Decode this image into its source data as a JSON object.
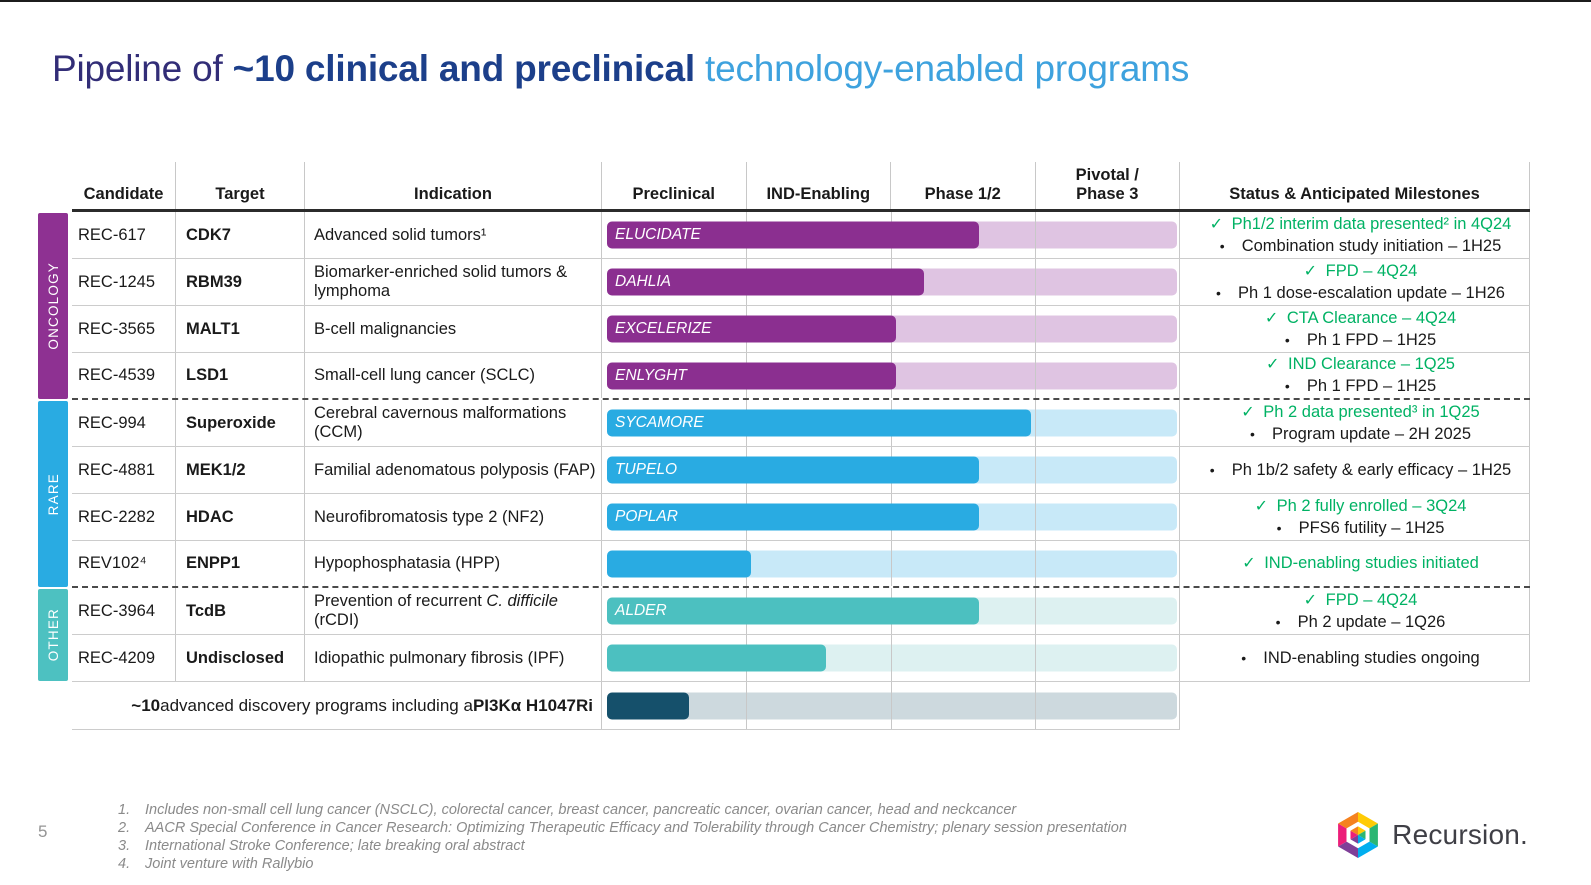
{
  "slide": {
    "title": {
      "part1": "Pipeline of ",
      "part2": "~10 clinical and preclinical",
      "part3": " technology-enabled programs"
    },
    "page_number": "5"
  },
  "colors": {
    "green": "#00b264",
    "dark_text": "#1a1a1a",
    "oncology_band": "#8e3192",
    "rare_band": "#29abe2",
    "other_band": "#4dc1c1",
    "oncology_bar": "#8b2f90",
    "oncology_track": "#dfc4e2",
    "rare_bar": "#29abe2",
    "rare_track": "#c8e9f8",
    "other_bar": "#4cc0c0",
    "other_track": "#ddf1f1",
    "discovery_bar": "#15506b",
    "discovery_track": "#cdd9de"
  },
  "icons": {
    "check": "✓",
    "bullet": "•"
  },
  "table": {
    "headers": {
      "candidate": "Candidate",
      "target": "Target",
      "indication": "Indication",
      "phases": [
        "Preclinical",
        "IND-Enabling",
        "Phase 1/2",
        "Pivotal /\nPhase 3"
      ],
      "status": "Status & Anticipated Milestones"
    },
    "groups": [
      {
        "label": "ONCOLOGY",
        "color": "#8e3192"
      },
      {
        "label": "RARE",
        "color": "#29abe2"
      },
      {
        "label": "OTHER",
        "color": "#4dc1c1"
      }
    ],
    "rows": [
      {
        "group": "ONCOLOGY",
        "candidate": "REC-617",
        "target": "CDK7",
        "indication": [
          {
            "text": "Advanced solid tumors¹"
          }
        ],
        "bar": {
          "label": "ELUCIDATE",
          "pct": 64.5,
          "color": "#8b2f90",
          "track": "#dfc4e2"
        },
        "status": [
          {
            "type": "done",
            "text": "Ph1/2 interim data presented² in 4Q24"
          },
          {
            "type": "next",
            "text": "Combination study initiation – 1H25"
          }
        ]
      },
      {
        "group": "ONCOLOGY",
        "candidate": "REC-1245",
        "target": "RBM39",
        "indication": [
          {
            "text": "Biomarker-enriched solid tumors & lymphoma"
          }
        ],
        "bar": {
          "label": "DAHLIA",
          "pct": 55,
          "color": "#8b2f90",
          "track": "#dfc4e2"
        },
        "status": [
          {
            "type": "done",
            "text": "FPD – 4Q24"
          },
          {
            "type": "next",
            "text": "Ph 1 dose-escalation update – 1H26"
          }
        ]
      },
      {
        "group": "ONCOLOGY",
        "candidate": "REC-3565",
        "target": "MALT1",
        "indication": [
          {
            "text": "B-cell malignancies"
          }
        ],
        "bar": {
          "label": "EXCELERIZE",
          "pct": 50,
          "color": "#8b2f90",
          "track": "#dfc4e2"
        },
        "status": [
          {
            "type": "done",
            "text": "CTA Clearance – 4Q24"
          },
          {
            "type": "next",
            "text": "Ph 1 FPD – 1H25"
          }
        ]
      },
      {
        "group": "ONCOLOGY",
        "candidate": "REC-4539",
        "target": "LSD1",
        "indication": [
          {
            "text": "Small-cell lung cancer (SCLC)"
          }
        ],
        "bar": {
          "label": "ENLYGHT",
          "pct": 50,
          "color": "#8b2f90",
          "track": "#dfc4e2"
        },
        "dashed_after": true,
        "status": [
          {
            "type": "done",
            "text": "IND Clearance – 1Q25"
          },
          {
            "type": "next",
            "text": "Ph 1 FPD – 1H25"
          }
        ]
      },
      {
        "group": "RARE",
        "candidate": "REC-994",
        "target": "Superoxide",
        "indication": [
          {
            "text": "Cerebral cavernous malformations (CCM)"
          }
        ],
        "bar": {
          "label": "SYCAMORE",
          "pct": 73.5,
          "color": "#29abe2",
          "track": "#c8e9f8"
        },
        "status": [
          {
            "type": "done",
            "text": "Ph 2 data presented³ in 1Q25"
          },
          {
            "type": "next",
            "text": "Program update – 2H 2025"
          }
        ]
      },
      {
        "group": "RARE",
        "candidate": "REC-4881",
        "target": "MEK1/2",
        "indication": [
          {
            "text": "Familial adenomatous polyposis (FAP)"
          }
        ],
        "bar": {
          "label": "TUPELO",
          "pct": 64.5,
          "color": "#29abe2",
          "track": "#c8e9f8"
        },
        "status": [
          {
            "type": "next",
            "text": "Ph 1b/2 safety & early efficacy – 1H25"
          }
        ]
      },
      {
        "group": "RARE",
        "candidate": "REC-2282",
        "target": "HDAC",
        "indication": [
          {
            "text": "Neurofibromatosis type 2 (NF2)"
          }
        ],
        "bar": {
          "label": "POPLAR",
          "pct": 64.5,
          "color": "#29abe2",
          "track": "#c8e9f8"
        },
        "status": [
          {
            "type": "done",
            "text": "Ph 2 fully enrolled – 3Q24"
          },
          {
            "type": "next",
            "text": "PFS6 futility – 1H25"
          }
        ]
      },
      {
        "group": "RARE",
        "candidate": "REV102⁴",
        "target": "ENPP1",
        "indication": [
          {
            "text": "Hypophosphatasia (HPP)"
          }
        ],
        "bar": {
          "label": "",
          "pct": 25,
          "color": "#29abe2",
          "track": "#c8e9f8"
        },
        "dashed_after": true,
        "status": [
          {
            "type": "done",
            "text": "IND-enabling studies initiated"
          }
        ]
      },
      {
        "group": "OTHER",
        "candidate": "REC-3964",
        "target": "TcdB",
        "indication": [
          {
            "text": "Prevention of recurrent "
          },
          {
            "text": "C. difficile",
            "italic": true
          },
          {
            "text": " (rCDI)"
          }
        ],
        "bar": {
          "label": "ALDER",
          "pct": 64.5,
          "color": "#4cc0c0",
          "track": "#ddf1f1"
        },
        "status": [
          {
            "type": "done",
            "text": "FPD – 4Q24"
          },
          {
            "type": "next",
            "text": "Ph 2 update – 1Q26"
          }
        ]
      },
      {
        "group": "OTHER",
        "candidate": "REC-4209",
        "target": "Undisclosed",
        "indication": [
          {
            "text": "Idiopathic pulmonary fibrosis (IPF)"
          }
        ],
        "bar": {
          "label": "",
          "pct": 38,
          "color": "#4cc0c0",
          "track": "#ddf1f1"
        },
        "status": [
          {
            "type": "next",
            "text": "IND-enabling studies ongoing"
          }
        ]
      }
    ],
    "discovery_row": {
      "parts": [
        {
          "text": "~10",
          "bold": true
        },
        {
          "text": " advanced discovery programs including a ",
          "bold": false
        },
        {
          "text": "PI3Kα H1047Ri",
          "bold": true
        }
      ],
      "bar": {
        "pct": 14.2,
        "color": "#15506b",
        "track": "#cdd9de"
      }
    }
  },
  "footnotes": [
    {
      "num": "1.",
      "text": "Includes non-small cell lung cancer (NSCLC), colorectal cancer, breast cancer, pancreatic cancer, ovarian cancer, head and neckcancer"
    },
    {
      "num": "2.",
      "text": "AACR Special Conference in Cancer Research: Optimizing Therapeutic Efficacy and Tolerability through Cancer Chemistry; plenary session presentation"
    },
    {
      "num": "3.",
      "text": "International Stroke Conference; late breaking oral abstract"
    },
    {
      "num": "4.",
      "text": "Joint venture with Rallybio"
    }
  ],
  "logo": {
    "text": "Recursion."
  }
}
